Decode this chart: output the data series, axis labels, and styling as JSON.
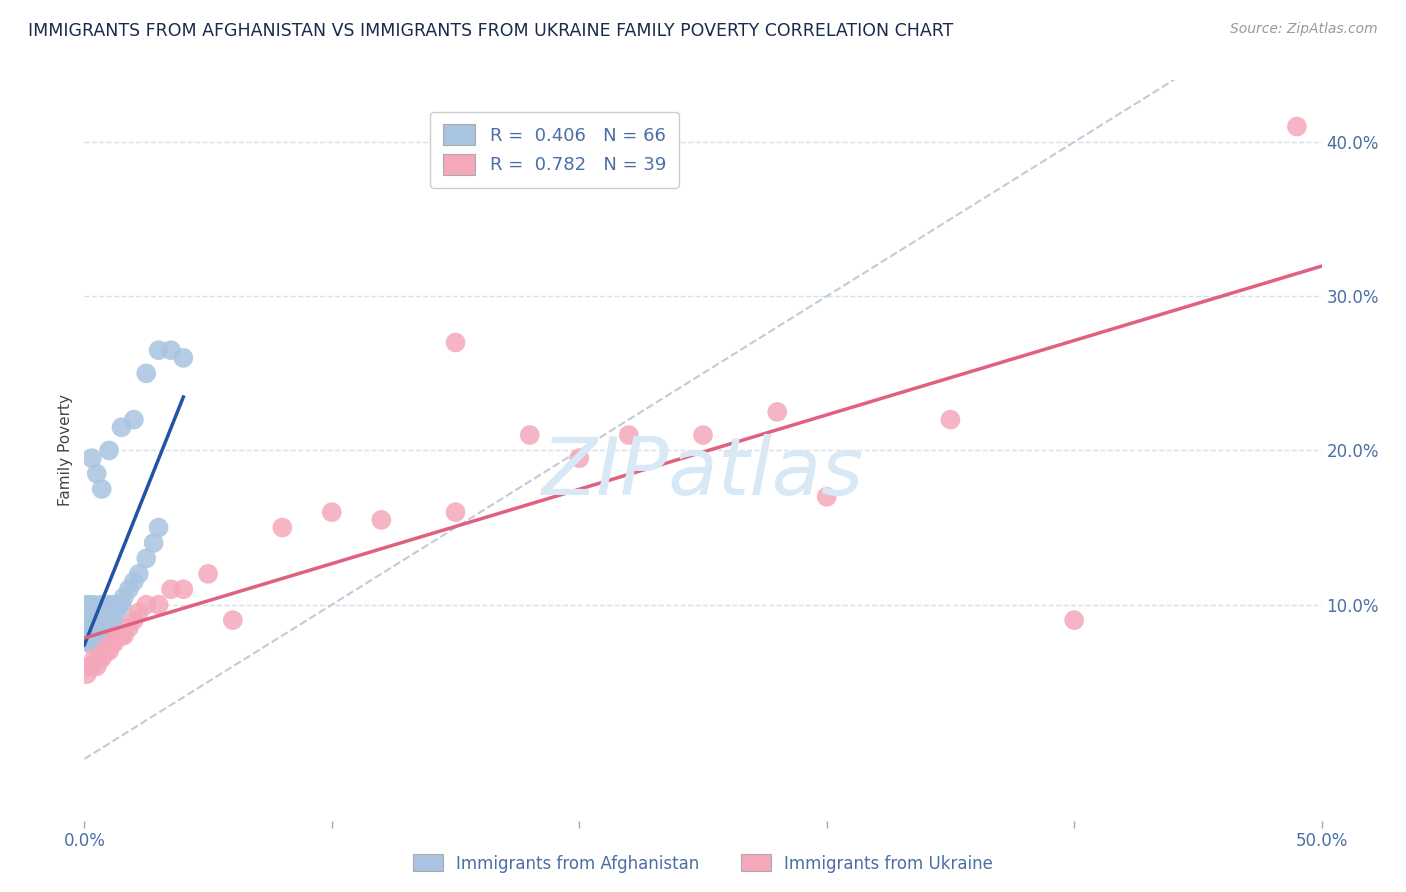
{
  "title": "IMMIGRANTS FROM AFGHANISTAN VS IMMIGRANTS FROM UKRAINE FAMILY POVERTY CORRELATION CHART",
  "source": "Source: ZipAtlas.com",
  "ylabel": "Family Poverty",
  "xmin": 0.0,
  "xmax": 0.5,
  "ymin": -0.04,
  "ymax": 0.44,
  "afghanistan_R": 0.406,
  "afghanistan_N": 66,
  "ukraine_R": 0.782,
  "ukraine_N": 39,
  "afghanistan_color": "#a8c4e0",
  "afghanistan_line_color": "#2155a3",
  "ukraine_color": "#f4a8ba",
  "ukraine_line_color": "#e06080",
  "watermark_color": "#d8e8f5",
  "grid_color": "#d8dfe8",
  "diag_color": "#c0ccd8",
  "afghanistan_x": [
    0.001,
    0.001,
    0.001,
    0.001,
    0.001,
    0.002,
    0.002,
    0.002,
    0.002,
    0.002,
    0.002,
    0.003,
    0.003,
    0.003,
    0.003,
    0.003,
    0.004,
    0.004,
    0.004,
    0.004,
    0.004,
    0.005,
    0.005,
    0.005,
    0.005,
    0.006,
    0.006,
    0.006,
    0.006,
    0.007,
    0.007,
    0.007,
    0.007,
    0.008,
    0.008,
    0.008,
    0.009,
    0.009,
    0.01,
    0.01,
    0.01,
    0.011,
    0.011,
    0.012,
    0.012,
    0.013,
    0.014,
    0.015,
    0.016,
    0.018,
    0.02,
    0.022,
    0.025,
    0.028,
    0.03,
    0.003,
    0.005,
    0.007,
    0.01,
    0.015,
    0.02,
    0.025,
    0.03,
    0.035,
    0.04,
    0.002
  ],
  "afghanistan_y": [
    0.08,
    0.085,
    0.09,
    0.095,
    0.1,
    0.075,
    0.08,
    0.085,
    0.09,
    0.095,
    0.1,
    0.075,
    0.08,
    0.085,
    0.09,
    0.095,
    0.075,
    0.08,
    0.085,
    0.09,
    0.1,
    0.08,
    0.085,
    0.09,
    0.095,
    0.08,
    0.085,
    0.09,
    0.095,
    0.08,
    0.085,
    0.09,
    0.1,
    0.085,
    0.09,
    0.095,
    0.085,
    0.09,
    0.085,
    0.09,
    0.1,
    0.09,
    0.095,
    0.09,
    0.1,
    0.095,
    0.1,
    0.1,
    0.105,
    0.11,
    0.115,
    0.12,
    0.13,
    0.14,
    0.15,
    0.195,
    0.185,
    0.175,
    0.2,
    0.215,
    0.22,
    0.25,
    0.265,
    0.265,
    0.26,
    0.06
  ],
  "ukraine_x": [
    0.001,
    0.002,
    0.003,
    0.004,
    0.005,
    0.006,
    0.007,
    0.008,
    0.009,
    0.01,
    0.011,
    0.012,
    0.013,
    0.014,
    0.015,
    0.016,
    0.018,
    0.02,
    0.022,
    0.025,
    0.03,
    0.035,
    0.04,
    0.05,
    0.06,
    0.08,
    0.1,
    0.12,
    0.15,
    0.18,
    0.2,
    0.22,
    0.25,
    0.28,
    0.3,
    0.35,
    0.15,
    0.4,
    0.49
  ],
  "ukraine_y": [
    0.055,
    0.06,
    0.06,
    0.065,
    0.06,
    0.065,
    0.065,
    0.07,
    0.07,
    0.07,
    0.075,
    0.075,
    0.08,
    0.08,
    0.08,
    0.08,
    0.085,
    0.09,
    0.095,
    0.1,
    0.1,
    0.11,
    0.11,
    0.12,
    0.09,
    0.15,
    0.16,
    0.155,
    0.27,
    0.21,
    0.195,
    0.21,
    0.21,
    0.225,
    0.17,
    0.22,
    0.16,
    0.09,
    0.41
  ]
}
